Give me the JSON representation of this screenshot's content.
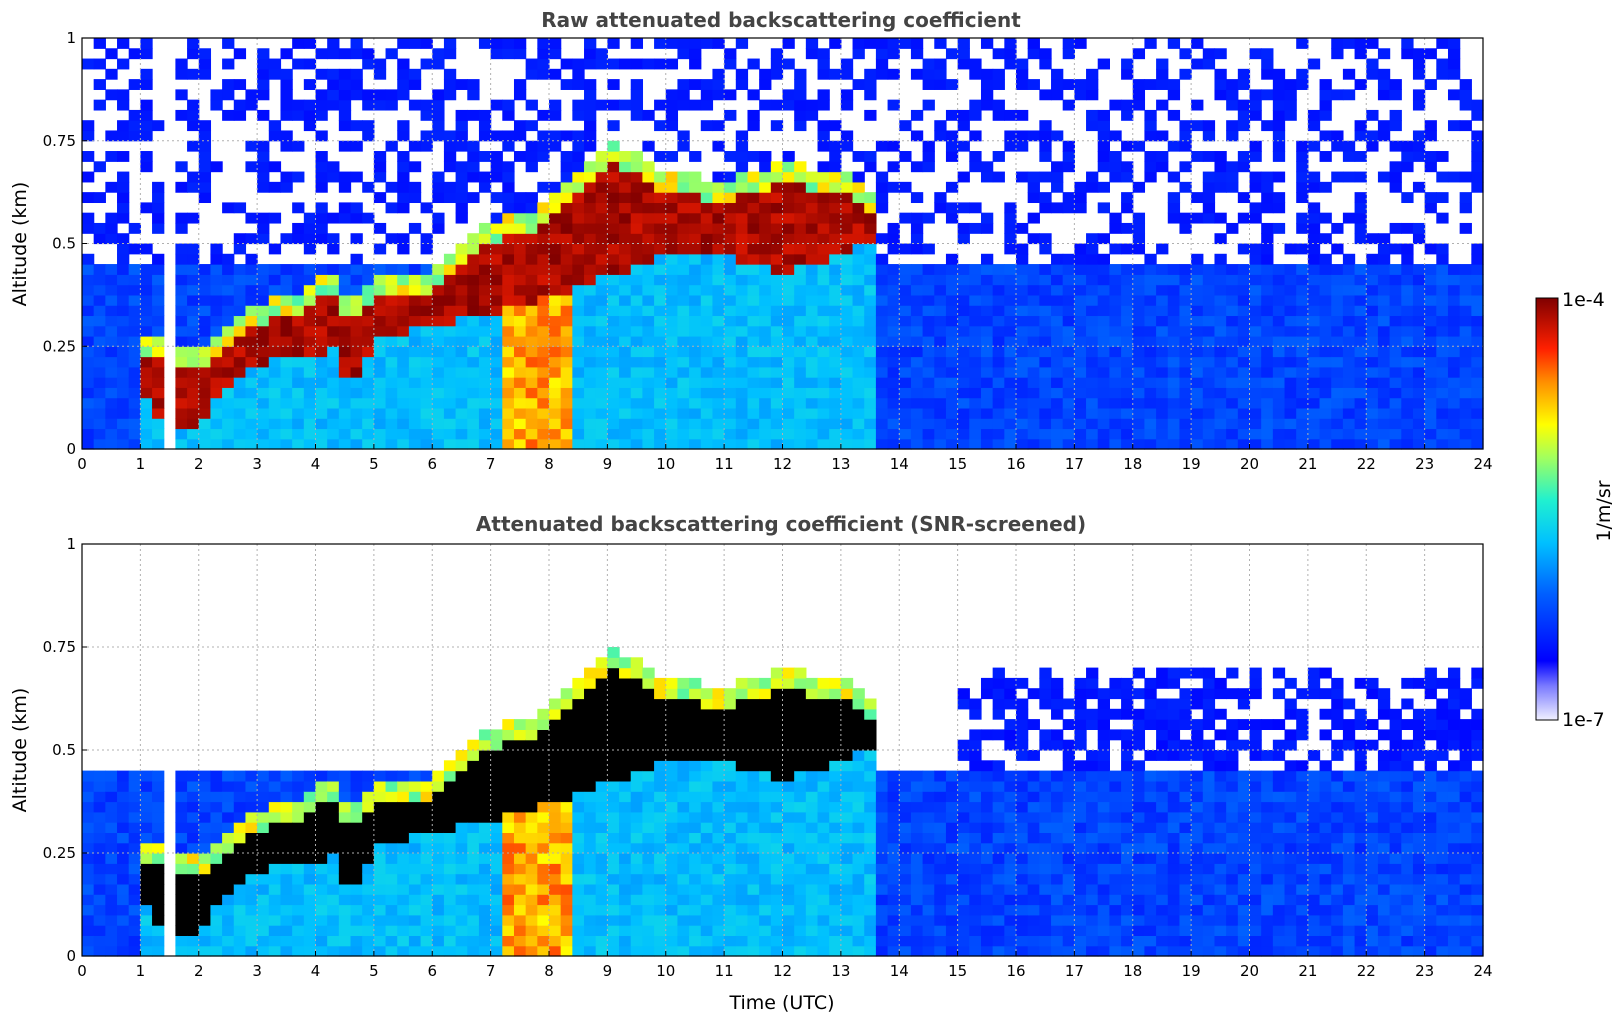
{
  "chart_data": [
    {
      "type": "heatmap",
      "title": "Raw attenuated backscattering coefficient",
      "xlabel": "",
      "ylabel": "Altitude (km)",
      "xlim": [
        0,
        24
      ],
      "ylim": [
        0,
        1
      ],
      "xticks": [
        "0",
        "1",
        "2",
        "3",
        "4",
        "5",
        "6",
        "7",
        "8",
        "9",
        "10",
        "11",
        "12",
        "13",
        "14",
        "15",
        "16",
        "17",
        "18",
        "19",
        "20",
        "21",
        "22",
        "23",
        "24"
      ],
      "yticks": [
        "0",
        "0.25",
        "0.5",
        "0.75",
        "1"
      ],
      "grid": true,
      "screened": false,
      "layer": {
        "description_time": [
          1.0,
          1.5,
          2.0,
          2.9,
          3.5,
          4.3,
          4.6,
          5.0,
          6.0,
          7.0,
          8.0,
          9.0,
          10.0,
          11.0,
          12.0,
          13.0,
          13.6
        ],
        "top_km": [
          0.24,
          0.2,
          0.19,
          0.3,
          0.32,
          0.38,
          0.3,
          0.38,
          0.38,
          0.5,
          0.55,
          0.7,
          0.63,
          0.6,
          0.65,
          0.62,
          0.58
        ],
        "bottom_km": [
          0.15,
          0.02,
          0.07,
          0.2,
          0.22,
          0.24,
          0.15,
          0.26,
          0.3,
          0.33,
          0.37,
          0.42,
          0.47,
          0.48,
          0.42,
          0.48,
          0.5
        ]
      }
    },
    {
      "type": "heatmap",
      "title": "Attenuated backscattering coefficient (SNR-screened)",
      "xlabel": "Time (UTC)",
      "ylabel": "Altitude (km)",
      "xlim": [
        0,
        24
      ],
      "ylim": [
        0,
        1
      ],
      "xticks": [
        "0",
        "1",
        "2",
        "3",
        "4",
        "5",
        "6",
        "7",
        "8",
        "9",
        "10",
        "11",
        "12",
        "13",
        "14",
        "15",
        "16",
        "17",
        "18",
        "19",
        "20",
        "21",
        "22",
        "23",
        "24"
      ],
      "yticks": [
        "0",
        "0.25",
        "0.5",
        "0.75",
        "1"
      ],
      "grid": true,
      "screened": true
    }
  ],
  "colorbar": {
    "label": "1/m/sr",
    "max_label": "1e-4",
    "min_label": "1e-7",
    "scale": "log",
    "colormap": "jet",
    "saturated_color": "#000000"
  }
}
